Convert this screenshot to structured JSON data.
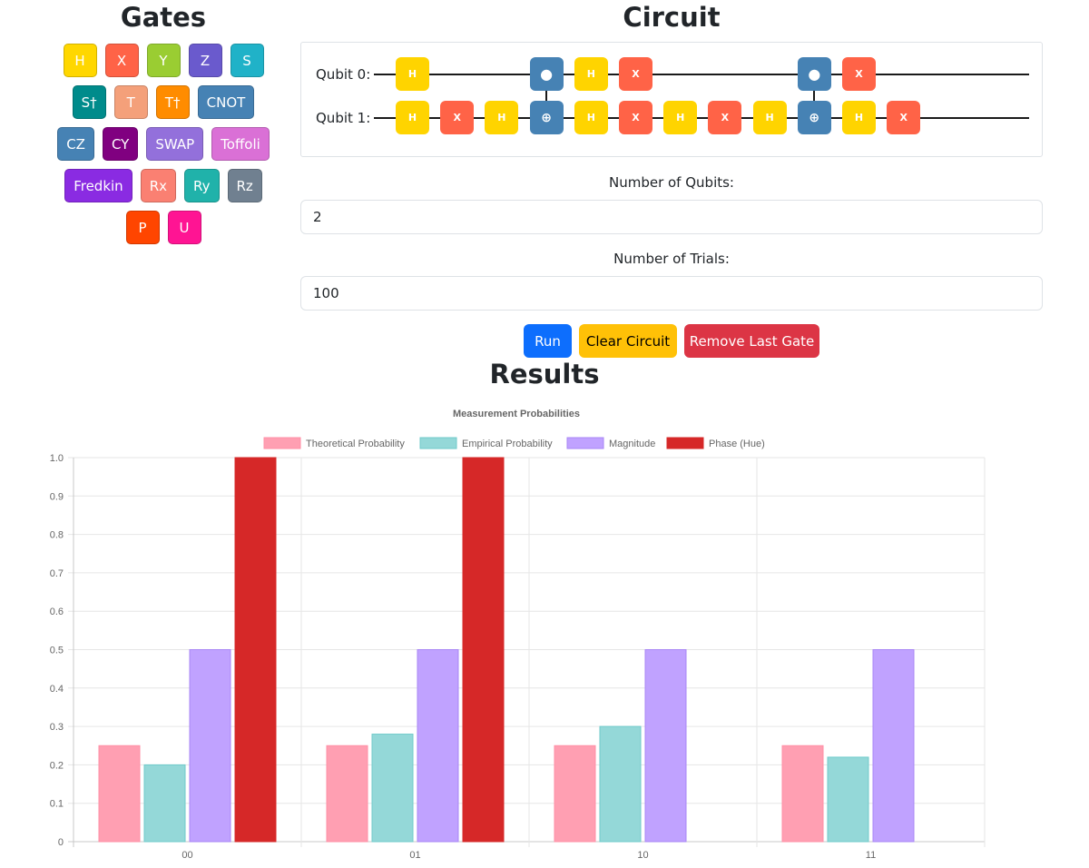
{
  "gates_panel": {
    "title": "Gates",
    "rows": [
      [
        {
          "label": "H",
          "color": "#FFD700"
        },
        {
          "label": "X",
          "color": "#FF6347"
        },
        {
          "label": "Y",
          "color": "#9ACD32"
        },
        {
          "label": "Z",
          "color": "#6A5ACD"
        },
        {
          "label": "S",
          "color": "#20B2C8"
        }
      ],
      [
        {
          "label": "S†",
          "color": "#008B8B"
        },
        {
          "label": "T",
          "color": "#F4A07A"
        },
        {
          "label": "T†",
          "color": "#FF8C00"
        },
        {
          "label": "CNOT",
          "color": "#4682B4"
        }
      ],
      [
        {
          "label": "CZ",
          "color": "#4682B4"
        },
        {
          "label": "CY",
          "color": "#800080"
        },
        {
          "label": "SWAP",
          "color": "#9370DB"
        },
        {
          "label": "Toffoli",
          "color": "#DA70D6"
        }
      ],
      [
        {
          "label": "Fredkin",
          "color": "#8A2BE2"
        },
        {
          "label": "Rx",
          "color": "#FA8072"
        },
        {
          "label": "Ry",
          "color": "#20B2AA"
        },
        {
          "label": "Rz",
          "color": "#708090"
        }
      ],
      [
        {
          "label": "P",
          "color": "#FF4500"
        },
        {
          "label": "U",
          "color": "#FF1493"
        }
      ]
    ]
  },
  "circuit": {
    "title": "Circuit",
    "qubit_labels": [
      "Qubit 0:",
      "Qubit 1:"
    ],
    "qubit0_gates": [
      {
        "col": 0,
        "label": "H",
        "kind": "h"
      },
      {
        "col": 3,
        "label": "●",
        "kind": "c"
      },
      {
        "col": 4,
        "label": "H",
        "kind": "h"
      },
      {
        "col": 5,
        "label": "X",
        "kind": "x"
      },
      {
        "col": 9,
        "label": "●",
        "kind": "c"
      },
      {
        "col": 10,
        "label": "X",
        "kind": "x"
      }
    ],
    "qubit1_gates": [
      {
        "col": 0,
        "label": "H",
        "kind": "h"
      },
      {
        "col": 1,
        "label": "X",
        "kind": "x"
      },
      {
        "col": 2,
        "label": "H",
        "kind": "h"
      },
      {
        "col": 3,
        "label": "⊕",
        "kind": "c"
      },
      {
        "col": 4,
        "label": "H",
        "kind": "h"
      },
      {
        "col": 5,
        "label": "X",
        "kind": "x"
      },
      {
        "col": 6,
        "label": "H",
        "kind": "h"
      },
      {
        "col": 7,
        "label": "X",
        "kind": "x"
      },
      {
        "col": 8,
        "label": "H",
        "kind": "h"
      },
      {
        "col": 9,
        "label": "⊕",
        "kind": "c"
      },
      {
        "col": 10,
        "label": "H",
        "kind": "h"
      },
      {
        "col": 11,
        "label": "X",
        "kind": "x"
      }
    ],
    "control_columns": [
      3,
      9
    ]
  },
  "form": {
    "qubits_label": "Number of Qubits:",
    "qubits_value": "2",
    "trials_label": "Number of Trials:",
    "trials_value": "100"
  },
  "actions": {
    "run_label": "Run",
    "clear_label": "Clear Circuit",
    "remove_label": "Remove Last Gate"
  },
  "results": {
    "title": "Results"
  },
  "chart_data": {
    "type": "bar",
    "title": "Measurement Probabilities",
    "categories": [
      "00",
      "01",
      "10",
      "11"
    ],
    "series": [
      {
        "name": "Theoretical Probability",
        "values": [
          0.25,
          0.25,
          0.25,
          0.25
        ],
        "color": "#FF9FB2",
        "border": "#FF8FA6"
      },
      {
        "name": "Empirical Probability",
        "values": [
          0.2,
          0.28,
          0.3,
          0.22
        ],
        "color": "#94D8D8",
        "border": "#6FCACA"
      },
      {
        "name": "Magnitude",
        "values": [
          0.5,
          0.5,
          0.5,
          0.5
        ],
        "color": "#C0A2FF",
        "border": "#A987F5"
      },
      {
        "name": "Phase (Hue)",
        "values": [
          1.0,
          1.0,
          0,
          0
        ],
        "color": "#D62828",
        "border": "#D62828"
      }
    ],
    "ylim": [
      0,
      1.0
    ],
    "yticks": [
      "0",
      "0.1",
      "0.2",
      "0.3",
      "0.4",
      "0.5",
      "0.6",
      "0.7",
      "0.8",
      "0.9",
      "1.0"
    ],
    "legend_position": "top",
    "grid": true
  }
}
